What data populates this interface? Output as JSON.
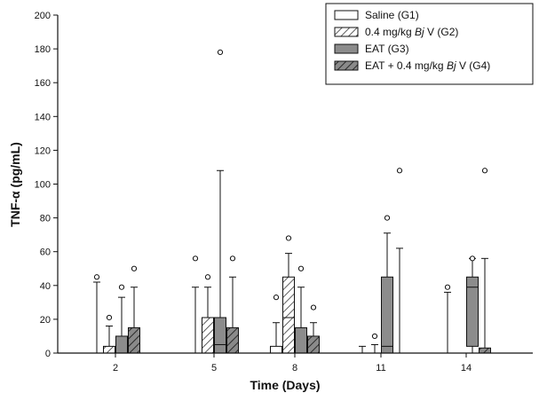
{
  "chart_data": {
    "type": "box",
    "title": "",
    "xlabel": "Time (Days)",
    "ylabel": "TNF-α (pg/mL)",
    "ylim": [
      0,
      200
    ],
    "yticks": [
      0,
      20,
      40,
      60,
      80,
      100,
      120,
      140,
      160,
      180,
      200
    ],
    "categories": [
      "2",
      "5",
      "8",
      "11",
      "14"
    ],
    "grid": false,
    "legend_position": "top-right",
    "series": [
      {
        "name": "Saline (G1)",
        "legend_parts": [
          "Saline (G1)"
        ],
        "style": "white",
        "boxes": [
          {
            "category": "2",
            "whisker_low": 0,
            "q1": 0,
            "median": 0,
            "q3": 0,
            "whisker_high": 42,
            "outliers": [
              45
            ]
          },
          {
            "category": "5",
            "whisker_low": 0,
            "q1": 0,
            "median": 0,
            "q3": 0,
            "whisker_high": 39,
            "outliers": [
              56
            ]
          },
          {
            "category": "8",
            "whisker_low": 0,
            "q1": 0,
            "median": 0,
            "q3": 4,
            "whisker_high": 18,
            "outliers": [
              33
            ]
          },
          {
            "category": "11",
            "whisker_low": 0,
            "q1": 0,
            "median": 0,
            "q3": 0,
            "whisker_high": 4,
            "outliers": []
          },
          {
            "category": "14",
            "whisker_low": 0,
            "q1": 0,
            "median": 0,
            "q3": 0,
            "whisker_high": 36,
            "outliers": [
              39
            ]
          }
        ]
      },
      {
        "name": "0.4 mg/kg Bj V (G2)",
        "legend_parts": [
          "0.4 mg/kg ",
          "Bj",
          " V (G2)"
        ],
        "style": "hatch-light",
        "boxes": [
          {
            "category": "2",
            "whisker_low": 0,
            "q1": 0,
            "median": 0,
            "q3": 4,
            "whisker_high": 16,
            "outliers": [
              21
            ]
          },
          {
            "category": "5",
            "whisker_low": 0,
            "q1": 0,
            "median": 21,
            "q3": 21,
            "whisker_high": 39,
            "outliers": [
              45
            ]
          },
          {
            "category": "8",
            "whisker_low": 0,
            "q1": 0,
            "median": 21,
            "q3": 45,
            "whisker_high": 59,
            "outliers": [
              68
            ]
          },
          {
            "category": "11",
            "whisker_low": 0,
            "q1": 0,
            "median": 0,
            "q3": 0,
            "whisker_high": 5,
            "outliers": [
              10
            ]
          },
          {
            "category": "14",
            "whisker_low": 0,
            "q1": 0,
            "median": 0,
            "q3": 0,
            "whisker_high": 0,
            "outliers": []
          }
        ]
      },
      {
        "name": "EAT (G3)",
        "legend_parts": [
          "EAT (G3)"
        ],
        "style": "gray",
        "boxes": [
          {
            "category": "2",
            "whisker_low": 0,
            "q1": 0,
            "median": 0,
            "q3": 10,
            "whisker_high": 33,
            "outliers": [
              39
            ]
          },
          {
            "category": "5",
            "whisker_low": 0,
            "q1": 0,
            "median": 5,
            "q3": 21,
            "whisker_high": 108,
            "outliers": [
              178
            ]
          },
          {
            "category": "8",
            "whisker_low": 0,
            "q1": 0,
            "median": 0,
            "q3": 15,
            "whisker_high": 39,
            "outliers": [
              50
            ]
          },
          {
            "category": "11",
            "whisker_low": 0,
            "q1": 0,
            "median": 4,
            "q3": 45,
            "whisker_high": 71,
            "outliers": [
              80
            ]
          },
          {
            "category": "14",
            "whisker_low": 0,
            "q1": 4,
            "median": 39,
            "q3": 45,
            "whisker_high": 56,
            "outliers": [
              56
            ]
          }
        ]
      },
      {
        "name": "EAT + 0.4 mg/kg Bj V (G4)",
        "legend_parts": [
          "EAT + 0.4 mg/kg ",
          "Bj",
          " V (G4)"
        ],
        "style": "hatch-dark",
        "boxes": [
          {
            "category": "2",
            "whisker_low": 0,
            "q1": 0,
            "median": 0,
            "q3": 15,
            "whisker_high": 39,
            "outliers": [
              50
            ]
          },
          {
            "category": "5",
            "whisker_low": 0,
            "q1": 0,
            "median": 0,
            "q3": 15,
            "whisker_high": 45,
            "outliers": [
              56
            ]
          },
          {
            "category": "8",
            "whisker_low": 0,
            "q1": 0,
            "median": 0,
            "q3": 10,
            "whisker_high": 18,
            "outliers": [
              27
            ]
          },
          {
            "category": "11",
            "whisker_low": 0,
            "q1": 0,
            "median": 0,
            "q3": 0,
            "whisker_high": 62,
            "outliers": [
              108
            ]
          },
          {
            "category": "14",
            "whisker_low": 0,
            "q1": 0,
            "median": 0,
            "q3": 3,
            "whisker_high": 56,
            "outliers": [
              108
            ]
          }
        ]
      }
    ]
  }
}
